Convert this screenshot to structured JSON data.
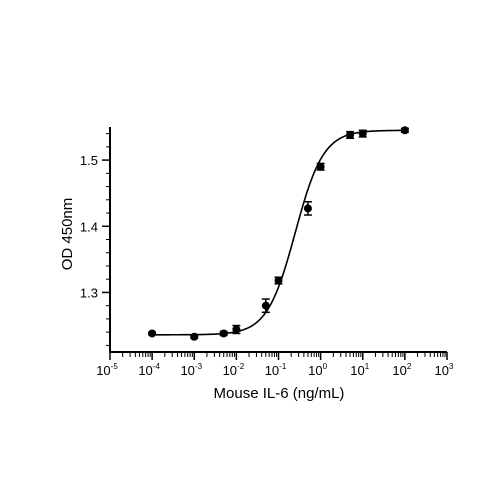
{
  "chart_data": {
    "type": "scatter",
    "xlabel": "Mouse IL-6 (ng/mL)",
    "ylabel": "OD 450nm",
    "x_scale": "log10",
    "xlim": [
      1e-05,
      1000
    ],
    "ylim": [
      1.21,
      1.55
    ],
    "x_ticks": [
      {
        "base": "10",
        "exp": "-5",
        "value": 1e-05
      },
      {
        "base": "10",
        "exp": "-4",
        "value": 0.0001
      },
      {
        "base": "10",
        "exp": "-3",
        "value": 0.001
      },
      {
        "base": "10",
        "exp": "-2",
        "value": 0.01
      },
      {
        "base": "10",
        "exp": "-1",
        "value": 0.1
      },
      {
        "base": "10",
        "exp": "0",
        "value": 1
      },
      {
        "base": "10",
        "exp": "1",
        "value": 10
      },
      {
        "base": "10",
        "exp": "2",
        "value": 100
      },
      {
        "base": "10",
        "exp": "3",
        "value": 1000
      }
    ],
    "y_ticks": [
      {
        "label": "1.3",
        "value": 1.3
      },
      {
        "label": "1.4",
        "value": 1.4
      },
      {
        "label": "1.5",
        "value": 1.5
      }
    ],
    "grid": false,
    "legend": "none",
    "points": [
      {
        "x": 0.0001,
        "y": 1.238,
        "err": 0.002
      },
      {
        "x": 0.001,
        "y": 1.233,
        "err": 0.002
      },
      {
        "x": 0.005,
        "y": 1.238,
        "err": 0.003
      },
      {
        "x": 0.01,
        "y": 1.244,
        "err": 0.006
      },
      {
        "x": 0.05,
        "y": 1.28,
        "err": 0.01
      },
      {
        "x": 0.1,
        "y": 1.318,
        "err": 0.005
      },
      {
        "x": 0.5,
        "y": 1.427,
        "err": 0.01
      },
      {
        "x": 1,
        "y": 1.49,
        "err": 0.005
      },
      {
        "x": 5,
        "y": 1.538,
        "err": 0.005
      },
      {
        "x": 10,
        "y": 1.54,
        "err": 0.005
      },
      {
        "x": 100,
        "y": 1.545,
        "err": 0.003
      }
    ],
    "fit": {
      "model": "4PL",
      "bottom": 1.236,
      "top": 1.545,
      "ec50": 0.25,
      "hill": 1.3
    },
    "colors": {
      "marker": "#000000",
      "line": "#000000",
      "background": "#ffffff"
    }
  }
}
